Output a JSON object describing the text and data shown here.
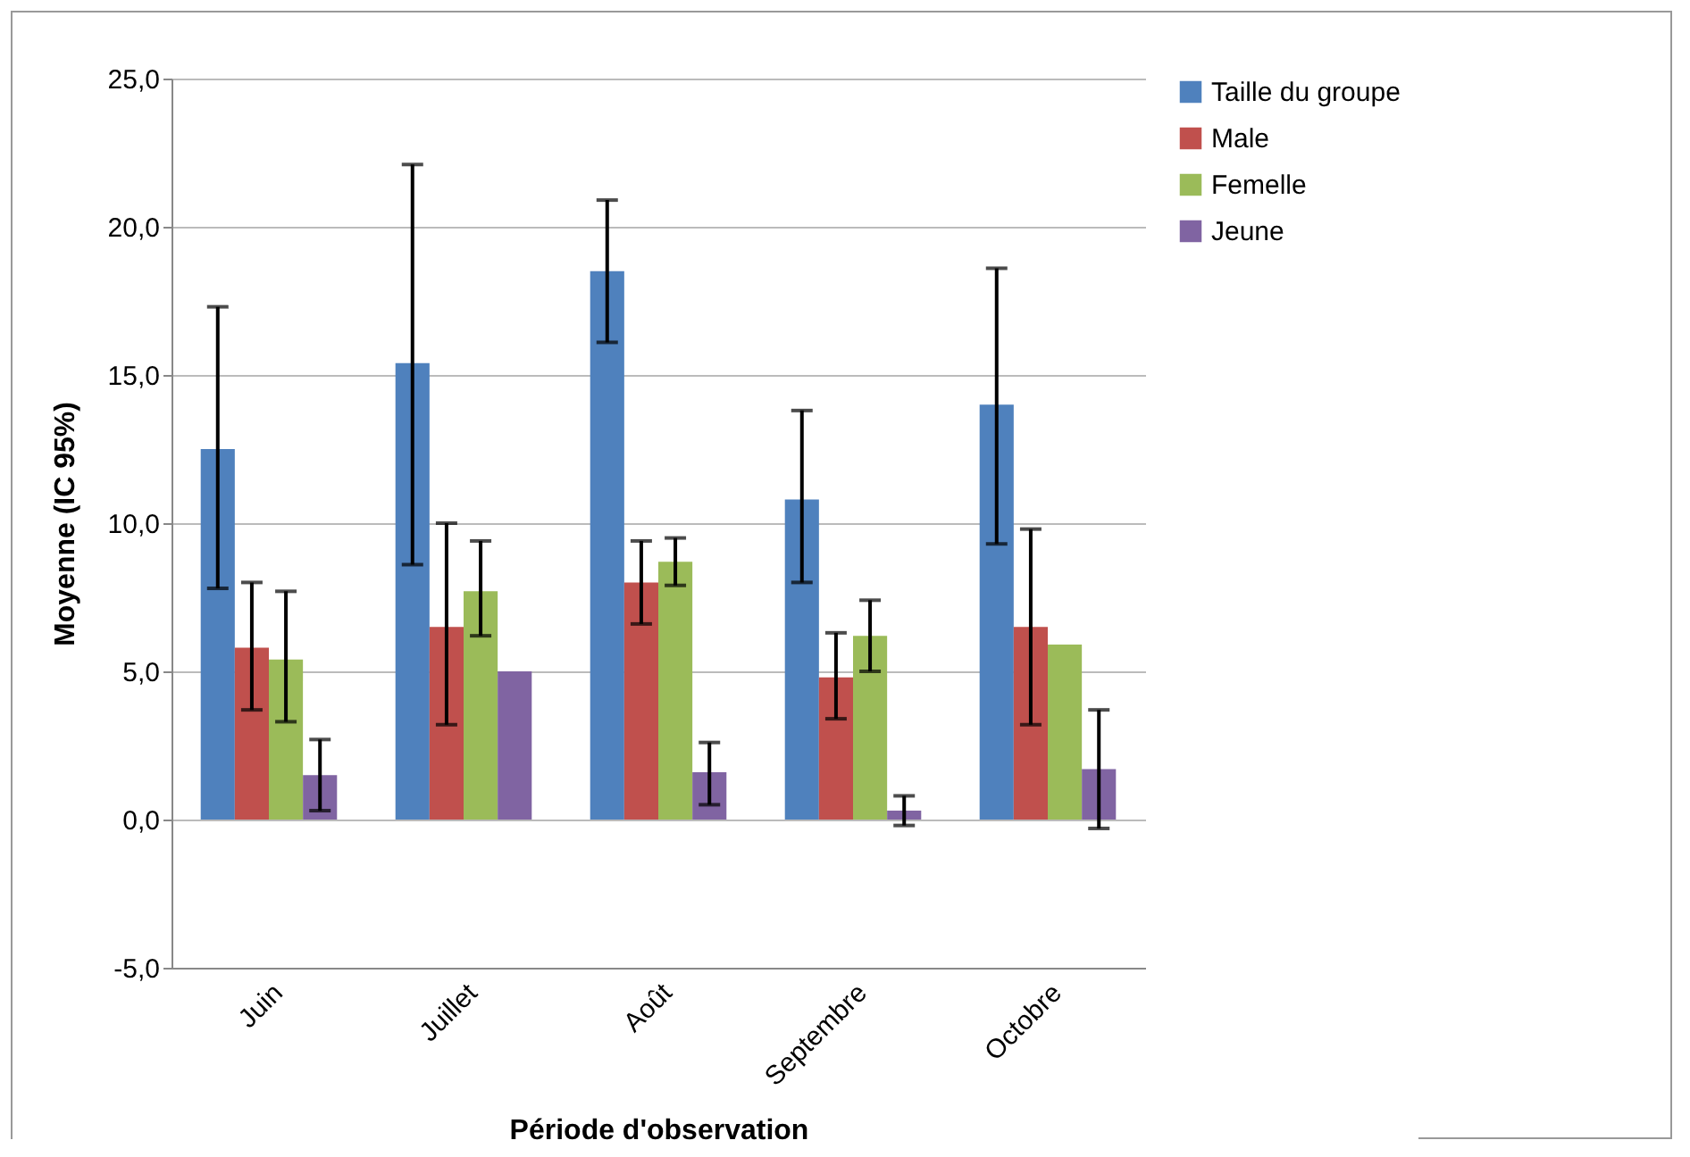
{
  "chart_data": {
    "type": "bar",
    "xlabel": "Période d'observation",
    "ylabel": "Moyenne (IC 95%)",
    "categories": [
      "Juin",
      "Juillet",
      "Août",
      "Septembre",
      "Octobre"
    ],
    "series": [
      {
        "name": "Taille du groupe",
        "color": "#4f81bd",
        "values": [
          12.5,
          15.4,
          18.5,
          10.8,
          14.0
        ],
        "errors": [
          [
            7.8,
            17.3
          ],
          [
            8.6,
            22.1
          ],
          [
            16.1,
            20.9
          ],
          [
            8.0,
            13.8
          ],
          [
            9.3,
            18.6
          ]
        ]
      },
      {
        "name": "Male",
        "color": "#c0504d",
        "values": [
          5.8,
          6.5,
          8.0,
          4.8,
          6.5
        ],
        "errors": [
          [
            3.7,
            8.0
          ],
          [
            3.2,
            10.0
          ],
          [
            6.6,
            9.4
          ],
          [
            3.4,
            6.3
          ],
          [
            3.2,
            9.8
          ]
        ]
      },
      {
        "name": "Femelle",
        "color": "#9bbb59",
        "values": [
          5.4,
          7.7,
          8.7,
          6.2,
          5.9
        ],
        "errors": [
          [
            3.3,
            7.7
          ],
          [
            6.2,
            9.4
          ],
          [
            7.9,
            9.5
          ],
          [
            5.0,
            7.4
          ],
          null
        ]
      },
      {
        "name": "Jeune",
        "color": "#8064a2",
        "values": [
          1.5,
          5.0,
          1.6,
          0.3,
          1.7
        ],
        "errors": [
          [
            0.3,
            2.7
          ],
          null,
          [
            0.5,
            2.6
          ],
          [
            -0.2,
            0.8
          ],
          [
            -0.3,
            3.7
          ]
        ]
      }
    ],
    "ylim": [
      -5,
      25
    ],
    "yticks": [
      {
        "value": -5,
        "label": "-5,0"
      },
      {
        "value": 0,
        "label": "0,0"
      },
      {
        "value": 5,
        "label": "5,0"
      },
      {
        "value": 10,
        "label": "10,0"
      },
      {
        "value": 15,
        "label": "15,0"
      },
      {
        "value": 20,
        "label": "20,0"
      },
      {
        "value": 25,
        "label": "25,0"
      }
    ],
    "grid": "y",
    "legend": "right"
  }
}
